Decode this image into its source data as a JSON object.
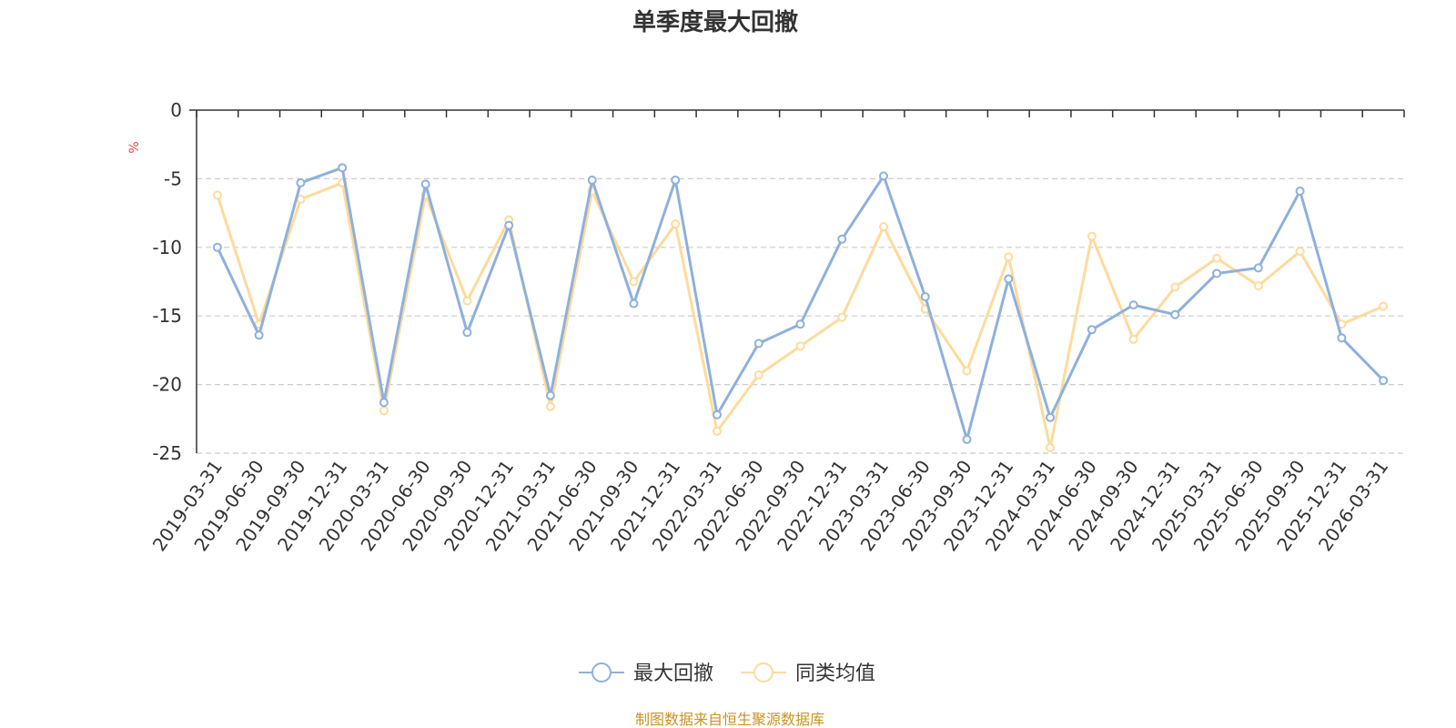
{
  "chart_data": {
    "type": "line",
    "title": "单季度最大回撤",
    "ylabel": "%",
    "ylim": [
      -25,
      0
    ],
    "yticks": [
      0,
      -5,
      -10,
      -15,
      -20,
      -25
    ],
    "grid": true,
    "legend_position": "bottom-center",
    "categories": [
      "2019-03-31",
      "2019-06-30",
      "2019-09-30",
      "2019-12-31",
      "2020-03-31",
      "2020-06-30",
      "2020-09-30",
      "2020-12-31",
      "2021-03-31",
      "2021-06-30",
      "2021-09-30",
      "2021-12-31",
      "2022-03-31",
      "2022-06-30",
      "2022-09-30",
      "2022-12-31",
      "2023-03-31",
      "2023-06-30",
      "2023-09-30",
      "2023-12-31",
      "2024-03-31",
      "2024-06-30",
      "2024-09-30",
      "2024-12-31",
      "2025-03-31",
      "2025-06-30",
      "2025-09-30",
      "2025-12-31",
      "2026-03-31"
    ],
    "series": [
      {
        "name": "最大回撤",
        "color": "#8eb0dd",
        "values": [
          -10.0,
          -16.4,
          -5.3,
          -4.2,
          -21.3,
          -5.4,
          -16.2,
          -8.4,
          -20.8,
          -5.1,
          -14.1,
          -5.1,
          -22.2,
          -17.0,
          -15.6,
          -9.4,
          -4.8,
          -13.6,
          -24.0,
          -12.3,
          -22.4,
          -16.0,
          -14.2,
          -14.9,
          -11.9,
          -11.5,
          -5.9,
          -16.6,
          -19.7
        ]
      },
      {
        "name": "同类均值",
        "color": "#fddb9c",
        "values": [
          -6.2,
          -15.6,
          -6.5,
          -5.3,
          -21.9,
          -6.2,
          -13.9,
          -8.0,
          -21.6,
          -5.9,
          -12.5,
          -8.3,
          -23.4,
          -19.3,
          -17.2,
          -15.1,
          -8.5,
          -14.5,
          -19.0,
          -10.7,
          -24.6,
          -9.2,
          -16.7,
          -12.9,
          -10.8,
          -12.8,
          -10.3,
          -15.6,
          -14.3
        ]
      }
    ]
  },
  "source_note": "制图数据来自恒生聚源数据库",
  "colors": {
    "unit": "#e8413f",
    "source": "#c9941f",
    "grid": "#cccccc",
    "axis": "#333333"
  }
}
